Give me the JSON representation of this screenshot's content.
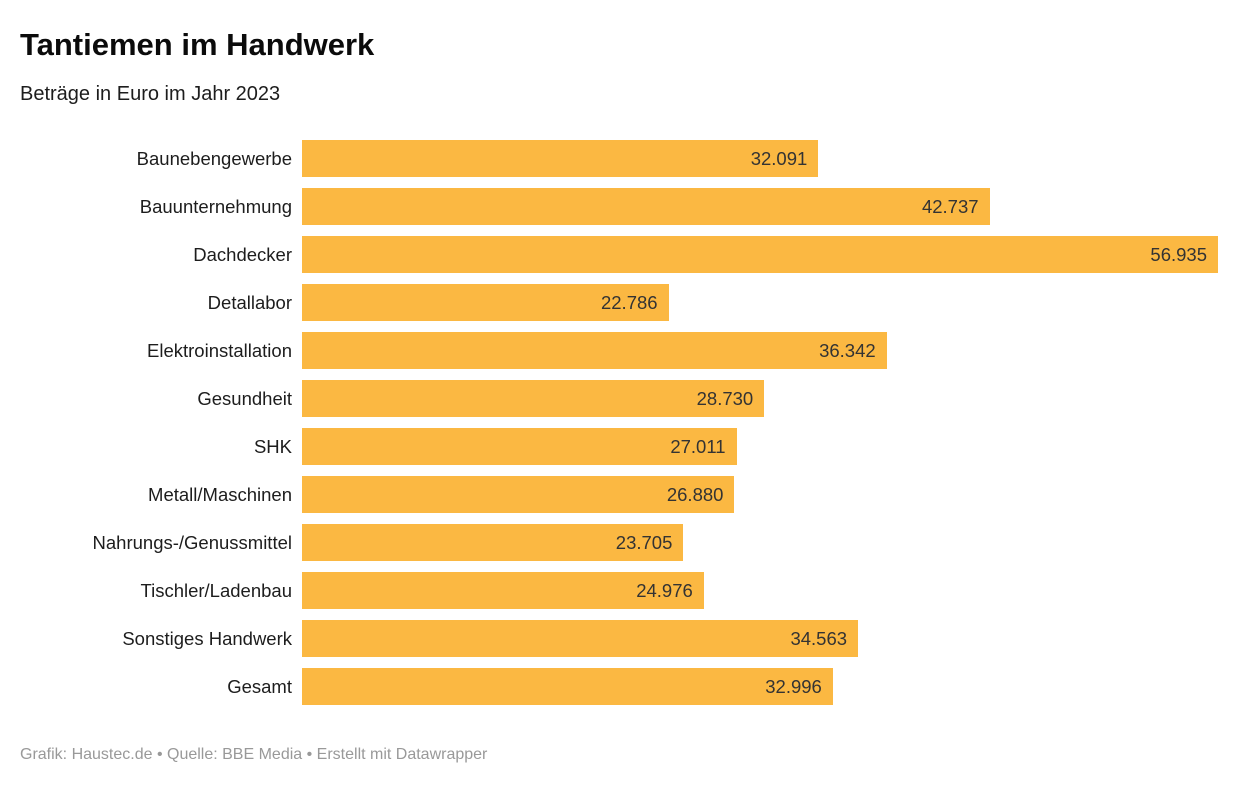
{
  "header": {
    "title": "Tantiemen im Handwerk",
    "subtitle": "Beträge in Euro im Jahr 2023"
  },
  "footer": {
    "text": "Grafik: Haustec.de • Quelle: BBE Media • Erstellt mit Datawrapper"
  },
  "colors": {
    "background": "#ffffff",
    "bar": "#FBB842",
    "title_text": "#0b0b0b",
    "label_text": "#1d1d1d",
    "value_text": "#333333",
    "footer_text": "#999999"
  },
  "chart_data": {
    "type": "bar",
    "orientation": "horizontal",
    "title": "Tantiemen im Handwerk",
    "subtitle": "Beträge in Euro im Jahr 2023",
    "xlabel": "",
    "ylabel": "",
    "categories": [
      "Baunebengewerbe",
      "Bauunternehmung",
      "Dachdecker",
      "Detallabor",
      "Elektroinstallation",
      "Gesundheit",
      "SHK",
      "Metall/Maschinen",
      "Nahrungs-/Genussmittel",
      "Tischler/Ladenbau",
      "Sonstiges Handwerk",
      "Gesamt"
    ],
    "values": [
      32091,
      42737,
      56935,
      22786,
      36342,
      28730,
      27011,
      26880,
      23705,
      24976,
      34563,
      32996
    ],
    "value_labels": [
      "32.091",
      "42.737",
      "56.935",
      "22.786",
      "36.342",
      "28.730",
      "27.011",
      "26.880",
      "23.705",
      "24.976",
      "34.563",
      "32.996"
    ],
    "xlim": [
      0,
      56935
    ],
    "grid": false,
    "legend": false,
    "bar_color": "#FBB842",
    "source_note": "Grafik: Haustec.de • Quelle: BBE Media • Erstellt mit Datawrapper"
  }
}
